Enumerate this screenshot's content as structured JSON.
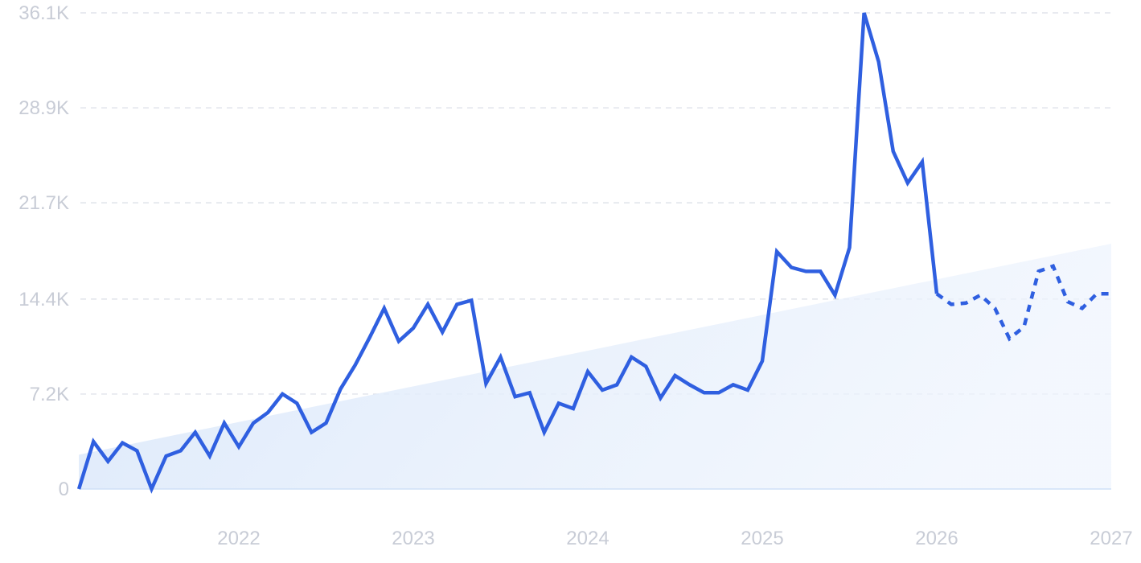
{
  "chart_data": {
    "type": "line",
    "title": "",
    "xlabel": "",
    "ylabel": "",
    "ylim": [
      0,
      36100
    ],
    "xlim": [
      "2021-01",
      "2027-01"
    ],
    "grid": true,
    "y_ticks": [
      {
        "value": 0,
        "label": "0"
      },
      {
        "value": 7200,
        "label": "7.2K"
      },
      {
        "value": 14400,
        "label": "14.4K"
      },
      {
        "value": 21700,
        "label": "21.7K"
      },
      {
        "value": 28900,
        "label": "28.9K"
      },
      {
        "value": 36100,
        "label": "36.1K"
      }
    ],
    "x_ticks": [
      {
        "value": "2022-01",
        "label": "2022"
      },
      {
        "value": "2023-01",
        "label": "2023"
      },
      {
        "value": "2024-01",
        "label": "2024"
      },
      {
        "value": "2025-01",
        "label": "2025"
      },
      {
        "value": "2026-01",
        "label": "2026"
      },
      {
        "value": "2027-01",
        "label": "2027"
      }
    ],
    "series": [
      {
        "style": "solid",
        "color": "#2f5fe0",
        "x": [
          "2021-02",
          "2021-03",
          "2021-04",
          "2021-05",
          "2021-06",
          "2021-07",
          "2021-08",
          "2021-09",
          "2021-10",
          "2021-11",
          "2021-12",
          "2022-01",
          "2022-02",
          "2022-03",
          "2022-04",
          "2022-05",
          "2022-06",
          "2022-07",
          "2022-08",
          "2022-09",
          "2022-10",
          "2022-11",
          "2022-12",
          "2023-01",
          "2023-02",
          "2023-03",
          "2023-04",
          "2023-05",
          "2023-06",
          "2023-07",
          "2023-08",
          "2023-09",
          "2023-10",
          "2023-11",
          "2023-12",
          "2024-01",
          "2024-02",
          "2024-03",
          "2024-04",
          "2024-05",
          "2024-06",
          "2024-07",
          "2024-08",
          "2024-09",
          "2024-10",
          "2024-11",
          "2024-12",
          "2025-01",
          "2025-02",
          "2025-03",
          "2025-04",
          "2025-05",
          "2025-06",
          "2025-07",
          "2025-08",
          "2025-09",
          "2025-10",
          "2025-11",
          "2025-12",
          "2026-01"
        ],
        "y": [
          0,
          3600,
          2100,
          3500,
          2900,
          0,
          2500,
          2900,
          4300,
          2500,
          5000,
          3200,
          5000,
          5800,
          7200,
          6500,
          4300,
          5000,
          7600,
          9400,
          11500,
          13700,
          11200,
          12200,
          14000,
          11900,
          14000,
          14300,
          8000,
          10000,
          7000,
          7300,
          4300,
          6500,
          6100,
          8900,
          7500,
          7900,
          10000,
          9300,
          6900,
          8600,
          7900,
          7300,
          7300,
          7900,
          7500,
          9700,
          18000,
          16800,
          16500,
          16500,
          14700,
          18300,
          36100,
          32400,
          25600,
          23200,
          24800,
          14800
        ]
      },
      {
        "style": "dashed",
        "color": "#2f5fe0",
        "x": [
          "2026-01",
          "2026-02",
          "2026-03",
          "2026-04",
          "2026-05",
          "2026-06",
          "2026-07",
          "2026-08",
          "2026-09",
          "2026-10",
          "2026-11",
          "2026-12",
          "2027-01"
        ],
        "y": [
          14800,
          14000,
          14100,
          14700,
          13700,
          11400,
          12300,
          16500,
          16900,
          14200,
          13700,
          14800,
          14800
        ]
      },
      {
        "style": "trend-area",
        "color": "#e3edfb",
        "x": [
          "2021-02",
          "2027-01"
        ],
        "y": [
          2600,
          18600
        ]
      }
    ]
  }
}
